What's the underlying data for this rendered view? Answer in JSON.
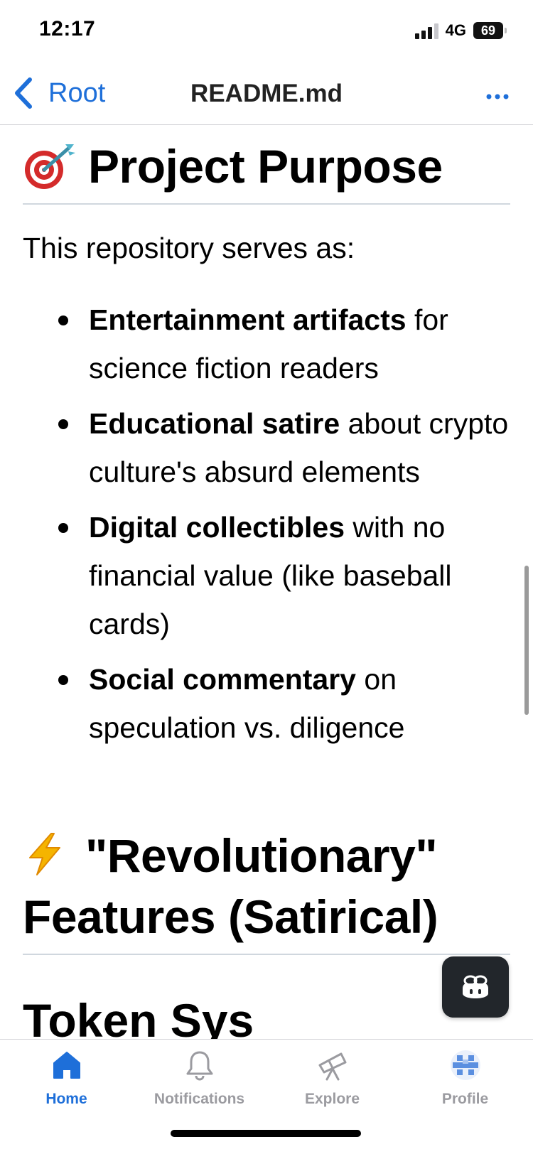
{
  "status_bar": {
    "time": "12:17",
    "network": "4G",
    "battery": "69"
  },
  "nav": {
    "back_label": "Root",
    "title": "README.md"
  },
  "section1": {
    "title": "Project Purpose",
    "icon": "target-emoji-icon",
    "intro": "This repository serves as:",
    "items": [
      {
        "bold": "Entertainment artifacts",
        "rest": " for science fiction readers"
      },
      {
        "bold": "Educational satire",
        "rest": " about crypto culture's absurd elements"
      },
      {
        "bold": "Digital collectibles",
        "rest": " with no financial value (like baseball cards)"
      },
      {
        "bold": "Social commentary",
        "rest": " on speculation vs. diligence"
      }
    ]
  },
  "section2": {
    "icon": "lightning-emoji-icon",
    "title_line1": "\"Revolutionary\"",
    "title_line2": "Features (Satirical)"
  },
  "section3": {
    "title_partial": "Token Sys"
  },
  "tabs": [
    {
      "label": "Home",
      "icon": "home-icon",
      "active": true
    },
    {
      "label": "Notifications",
      "icon": "bell-icon",
      "active": false
    },
    {
      "label": "Explore",
      "icon": "telescope-icon",
      "active": false
    },
    {
      "label": "Profile",
      "icon": "avatar-icon",
      "active": false
    }
  ],
  "colors": {
    "accent": "#1e6fd9",
    "tab_inactive": "#9b9ba0",
    "fab_bg": "#22262b"
  }
}
